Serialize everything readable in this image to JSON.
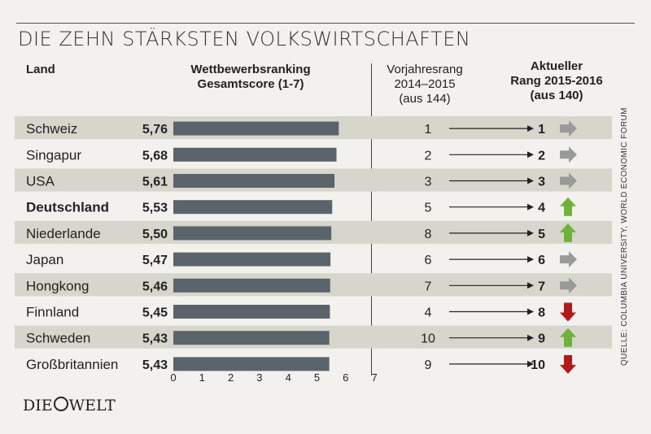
{
  "title": "DIE ZEHN STÄRKSTEN VOLKSWIRTSCHAFTEN",
  "headers": {
    "land": "Land",
    "score_line1": "Wettbewerbsranking",
    "score_line2": "Gesamtscore (1-7)",
    "prev_line1": "Vorjahresrang",
    "prev_line2": "2014–2015",
    "prev_line3": "(aus 144)",
    "curr_line1": "Aktueller",
    "curr_line2": "Rang 2015-2016",
    "curr_line3": "(aus 140)"
  },
  "source": "QUELLE: COLUMBIA UNIVERSITY, WORLD ECONOMIC FORUM",
  "logo": {
    "left": "DIE",
    "right": "WELT"
  },
  "colors": {
    "bar": "#5c646b",
    "stripe": "#d7d6cc",
    "up": "#6fb13a",
    "down": "#b5181c",
    "same": "#9a9a9a"
  },
  "chart_data": {
    "type": "bar",
    "orientation": "horizontal",
    "categories": [
      "Schweiz",
      "Singapur",
      "USA",
      "Deutschland",
      "Niederlande",
      "Japan",
      "Hongkong",
      "Finnland",
      "Schweden",
      "Großbritannien"
    ],
    "values": [
      5.76,
      5.68,
      5.61,
      5.53,
      5.5,
      5.47,
      5.46,
      5.45,
      5.43,
      5.43
    ],
    "value_labels": [
      "5,76",
      "5,68",
      "5,61",
      "5,53",
      "5,50",
      "5,47",
      "5,46",
      "5,45",
      "5,43",
      "5,43"
    ],
    "highlight": "Deutschland",
    "xlim": [
      0,
      7
    ],
    "xticks": [
      "0",
      "1",
      "2",
      "3",
      "4",
      "5",
      "6",
      "7"
    ],
    "previous_rank": [
      1,
      2,
      3,
      5,
      8,
      6,
      7,
      4,
      10,
      9
    ],
    "current_rank": [
      1,
      2,
      3,
      4,
      5,
      6,
      7,
      8,
      9,
      10
    ],
    "trend": [
      "same",
      "same",
      "same",
      "up",
      "up",
      "same",
      "same",
      "down",
      "up",
      "down"
    ]
  }
}
